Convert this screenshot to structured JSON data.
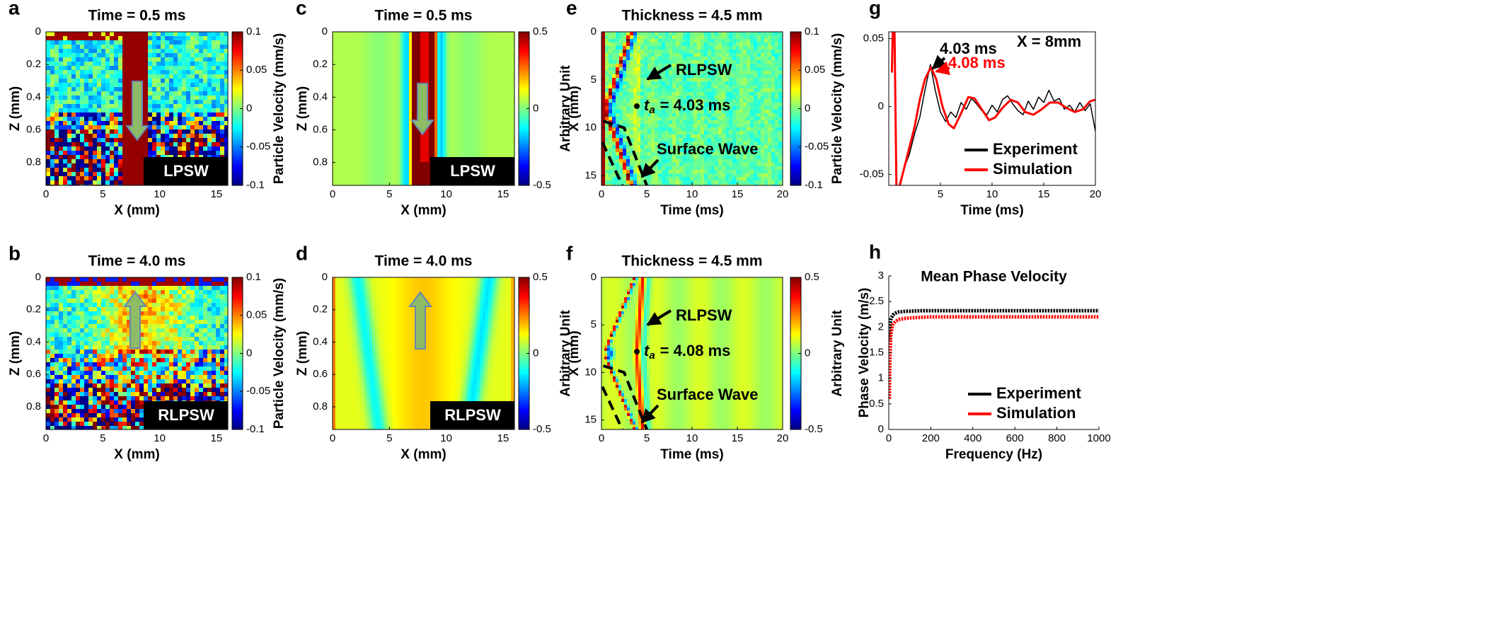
{
  "chart_data": [
    {
      "label": "a",
      "type": "heatmap",
      "title": "Time = 0.5 ms",
      "xlabel": "X (mm)",
      "ylabel": "Z (mm)",
      "xlim": [
        0,
        16
      ],
      "xticks": [
        0,
        5,
        10,
        15
      ],
      "ylim": [
        0,
        0.94
      ],
      "yticks": [
        0,
        0.2,
        0.4,
        0.6,
        0.8
      ],
      "y_reversed": true,
      "colormap": "jet",
      "colorbar": {
        "label": "Particle Velocity (mm/s)",
        "lim": [
          -0.1,
          0.1
        ],
        "ticks": [
          0.1,
          0.05,
          0,
          -0.05,
          -0.1
        ]
      },
      "annotations": [
        {
          "text": "LPSW"
        }
      ]
    },
    {
      "label": "b",
      "type": "heatmap",
      "title": "Time = 4.0 ms",
      "xlabel": "X (mm)",
      "ylabel": "Z (mm)",
      "xlim": [
        0,
        16
      ],
      "xticks": [
        0,
        5,
        10,
        15
      ],
      "ylim": [
        0,
        0.94
      ],
      "yticks": [
        0,
        0.2,
        0.4,
        0.6,
        0.8
      ],
      "y_reversed": true,
      "colormap": "jet",
      "colorbar": {
        "label": "Particle Velocity (mm/s)",
        "lim": [
          -0.1,
          0.1
        ],
        "ticks": [
          0.1,
          0.05,
          0,
          -0.05,
          -0.1
        ]
      },
      "annotations": [
        {
          "text": "RLPSW"
        }
      ]
    },
    {
      "label": "c",
      "type": "heatmap",
      "title": "Time = 0.5 ms",
      "xlabel": "X (mm)",
      "ylabel": "Z (mm)",
      "xlim": [
        0,
        16
      ],
      "xticks": [
        0,
        5,
        10,
        15
      ],
      "ylim": [
        0,
        0.94
      ],
      "yticks": [
        0,
        0.2,
        0.4,
        0.6,
        0.8
      ],
      "y_reversed": true,
      "colormap": "jet",
      "colorbar": {
        "label": "Arbitrary Unit",
        "lim": [
          -0.5,
          0.5
        ],
        "ticks": [
          0.5,
          0,
          -0.5
        ]
      },
      "annotations": [
        {
          "text": "LPSW"
        }
      ]
    },
    {
      "label": "d",
      "type": "heatmap",
      "title": "Time = 4.0 ms",
      "xlabel": "X (mm)",
      "ylabel": "Z (mm)",
      "xlim": [
        0,
        16
      ],
      "xticks": [
        0,
        5,
        10,
        15
      ],
      "ylim": [
        0,
        0.94
      ],
      "yticks": [
        0,
        0.2,
        0.4,
        0.6,
        0.8
      ],
      "y_reversed": true,
      "colormap": "jet",
      "colorbar": {
        "label": "Arbitrary Unit",
        "lim": [
          -0.5,
          0.5
        ],
        "ticks": [
          0.5,
          0,
          -0.5
        ]
      },
      "annotations": [
        {
          "text": "RLPSW"
        }
      ]
    },
    {
      "label": "e",
      "type": "heatmap",
      "title": "Thickness = 4.5 mm",
      "xlabel": "Time (ms)",
      "ylabel": "X (mm)",
      "xlim": [
        0,
        20
      ],
      "xticks": [
        0,
        5,
        10,
        15,
        20
      ],
      "ylim": [
        0,
        16
      ],
      "yticks": [
        0,
        5,
        10,
        15
      ],
      "y_reversed": true,
      "colormap": "jet",
      "colorbar": {
        "label": "Particle Velocity (mm/s)",
        "lim": [
          -0.1,
          0.1
        ],
        "ticks": [
          0.1,
          0.05,
          0,
          -0.05,
          -0.1
        ]
      },
      "annotations": [
        {
          "text": "RLPSW"
        },
        {
          "variable": "t",
          "subscript": "a",
          "text": "= 4.03 ms"
        },
        {
          "text": "Surface Wave"
        }
      ]
    },
    {
      "label": "f",
      "type": "heatmap",
      "title": "Thickness = 4.5 mm",
      "xlabel": "Time (ms)",
      "ylabel": "X (mm)",
      "xlim": [
        0,
        20
      ],
      "xticks": [
        0,
        5,
        10,
        15,
        20
      ],
      "ylim": [
        0,
        16
      ],
      "yticks": [
        0,
        5,
        10,
        15
      ],
      "y_reversed": true,
      "colormap": "jet",
      "colorbar": {
        "label": "Arbitrary Unit",
        "lim": [
          -0.5,
          0.5
        ],
        "ticks": [
          0.5,
          0,
          -0.5
        ]
      },
      "annotations": [
        {
          "text": "RLPSW"
        },
        {
          "variable": "t",
          "subscript": "a",
          "text": "= 4.08 ms"
        },
        {
          "text": "Surface Wave"
        }
      ]
    },
    {
      "label": "g",
      "type": "line",
      "xlabel": "Time (ms)",
      "xlim": [
        0,
        20
      ],
      "xticks": [
        5,
        10,
        15,
        20
      ],
      "ylim": [
        -0.058,
        0.055
      ],
      "yticks": [
        -0.05,
        0,
        0.05
      ],
      "box": true,
      "legend": "lower right",
      "series": [
        {
          "name": "Experiment",
          "color": "#000000",
          "width": 1.5,
          "x": [
            1.0,
            1.5,
            2.0,
            2.5,
            3.0,
            3.5,
            4.03,
            4.5,
            5.0,
            5.5,
            6.0,
            6.5,
            7.0,
            7.5,
            8.0,
            8.5,
            9.0,
            9.5,
            10.0,
            10.5,
            11.0,
            11.5,
            12.0,
            12.5,
            13.0,
            13.5,
            14.0,
            14.5,
            15.0,
            15.5,
            16.0,
            16.5,
            17.0,
            17.5,
            18.0,
            18.5,
            19.0,
            19.5,
            20.0
          ],
          "values": [
            -0.058,
            -0.045,
            -0.035,
            -0.02,
            -0.008,
            0.012,
            0.031,
            0.012,
            -0.004,
            -0.011,
            -0.004,
            -0.008,
            0.003,
            -0.002,
            0.006,
            0.002,
            -0.003,
            -0.006,
            0.001,
            -0.004,
            0.005,
            0.008,
            0.002,
            -0.003,
            -0.006,
            0.004,
            -0.002,
            0.007,
            0.003,
            0.012,
            0.004,
            0.006,
            -0.002,
            0.001,
            -0.004,
            0.003,
            -0.003,
            0.002,
            -0.018
          ]
        },
        {
          "name": "Simulation",
          "color": "#ff0000",
          "width": 3,
          "x": [
            0.3,
            0.4,
            0.55,
            0.75,
            1.0,
            1.5,
            2.0,
            2.5,
            3.0,
            3.5,
            4.08,
            4.6,
            5.2,
            5.8,
            6.3,
            7.0,
            7.7,
            8.3,
            9.0,
            9.7,
            10.3,
            11.0,
            11.8,
            12.5,
            13.2,
            14.0,
            14.8,
            15.6,
            16.4,
            17.2,
            18.0,
            18.8,
            19.5,
            20.0
          ],
          "values": [
            0.025,
            0.06,
            0.06,
            -0.065,
            -0.06,
            -0.045,
            -0.03,
            -0.015,
            0.005,
            0.02,
            0.029,
            0.02,
            0,
            -0.013,
            -0.016,
            -0.005,
            0.007,
            0.006,
            -0.002,
            -0.01,
            -0.008,
            -0.001,
            0.005,
            0.003,
            -0.004,
            -0.006,
            -0.002,
            0.003,
            0.003,
            -0.001,
            -0.004,
            -0.002,
            0.004,
            0.005
          ]
        }
      ],
      "annotations": [
        {
          "text": "4.03 ms",
          "color": "#000000"
        },
        {
          "text": "4.08 ms",
          "color": "#ff0000"
        },
        {
          "text": "X = 8mm",
          "color": "#000000"
        }
      ]
    },
    {
      "label": "h",
      "type": "line",
      "title": "Mean Phase Velocity",
      "xlabel": "Frequency (Hz)",
      "ylabel": "Phase Velocity (m/s)",
      "xlim": [
        0,
        1000
      ],
      "xticks": [
        0,
        200,
        400,
        600,
        800,
        1000
      ],
      "ylim": [
        0,
        3
      ],
      "yticks": [
        0,
        0.5,
        1,
        1.5,
        2,
        2.5,
        3
      ],
      "box": false,
      "legend": "lower right",
      "line_style": "dotted",
      "series": [
        {
          "name": "Experiment",
          "color": "#000000",
          "width": 5,
          "x": [
            3,
            5,
            8,
            10,
            15,
            20,
            30,
            40,
            50,
            60,
            80,
            100,
            150,
            200,
            250,
            300,
            350,
            400,
            450,
            500,
            550,
            600,
            650,
            700,
            750,
            800,
            850,
            900,
            950,
            1000
          ],
          "values": [
            1.75,
            2.0,
            2.1,
            2.15,
            2.2,
            2.24,
            2.27,
            2.29,
            2.3,
            2.3,
            2.31,
            2.31,
            2.32,
            2.32,
            2.32,
            2.32,
            2.32,
            2.32,
            2.32,
            2.32,
            2.32,
            2.32,
            2.32,
            2.32,
            2.32,
            2.32,
            2.32,
            2.32,
            2.32,
            2.32
          ]
        },
        {
          "name": "Simulation",
          "color": "#ff0000",
          "width": 5,
          "x": [
            3,
            5,
            8,
            10,
            15,
            20,
            30,
            40,
            50,
            60,
            80,
            100,
            150,
            200,
            250,
            300,
            350,
            400,
            450,
            500,
            550,
            600,
            650,
            700,
            750,
            800,
            850,
            900,
            950,
            1000
          ],
          "values": [
            0.6,
            1.3,
            1.65,
            1.85,
            1.98,
            2.05,
            2.1,
            2.13,
            2.15,
            2.16,
            2.17,
            2.18,
            2.19,
            2.2,
            2.2,
            2.2,
            2.2,
            2.2,
            2.2,
            2.2,
            2.2,
            2.2,
            2.2,
            2.2,
            2.2,
            2.2,
            2.2,
            2.2,
            2.2,
            2.2
          ]
        }
      ]
    }
  ]
}
